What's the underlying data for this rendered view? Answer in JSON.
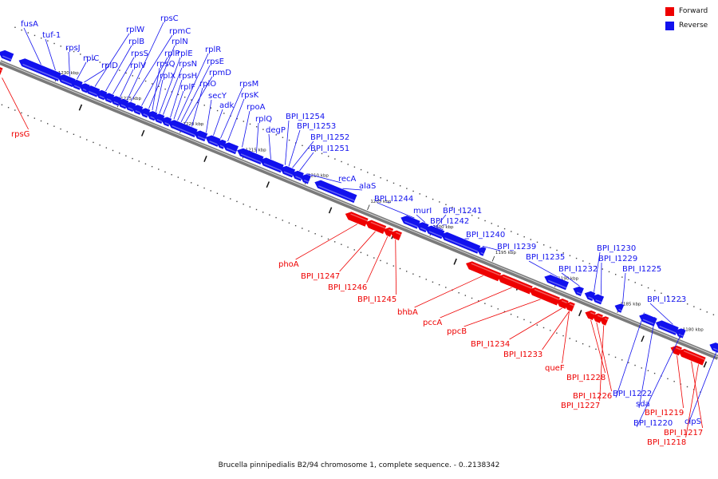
{
  "legend": {
    "forward": {
      "label": "Forward",
      "color": "#ee0000"
    },
    "reverse": {
      "label": "Reverse",
      "color": "#1111ee"
    }
  },
  "caption": "Brucella pinnipedialis B2/94 chromosome 1, complete sequence. - 0..2138342",
  "ticks": [
    "1230 kbp",
    "1225 kbp",
    "1220 kbp",
    "1215 kbp",
    "1210 kbp",
    "1205 kbp",
    "1200 kbp",
    "1195 kbp",
    "1190 kbp",
    "1185 kbp",
    "1180 kbp"
  ],
  "reverse_labels": [
    "fusA",
    "tuf-1",
    "rpsJ",
    "rplC",
    "rplD",
    "rplW",
    "rplB",
    "rpsS",
    "rplV",
    "rpsC",
    "rpmC",
    "rplP",
    "rplN",
    "rpsQ",
    "rplX",
    "rplE",
    "rpsN",
    "rpsH",
    "rplF",
    "rplR",
    "rpsE",
    "rpmD",
    "rplO",
    "secY",
    "adk",
    "rpsM",
    "rpsK",
    "rpoA",
    "rplQ",
    "degP",
    "BPI_I1254",
    "BPI_I1253",
    "BPI_I1252",
    "BPI_I1251",
    "recA",
    "alaS",
    "BPI_I1244",
    "murI",
    "BPI_I1241",
    "BPI_I1242",
    "BPI_I1240",
    "BPI_I1239",
    "BPI_I1235",
    "BPI_I1232",
    "BPI_I1230",
    "BPI_I1229",
    "BPI_I1225",
    "BPI_I1223",
    "BPI_I1222",
    "sda",
    "BPI_I1220",
    "clpS"
  ],
  "forward_labels": [
    "rpsG",
    "phoA",
    "BPI_I1247",
    "BPI_I1246",
    "BPI_I1245",
    "bhbA",
    "pccA",
    "ppcB",
    "BPI_I1234",
    "BPI_I1233",
    "queF",
    "BPI_I1228",
    "BPI_I1226",
    "BPI_I1227",
    "BPI_I1219",
    "BPI_I1217",
    "BPI_I1218"
  ]
}
